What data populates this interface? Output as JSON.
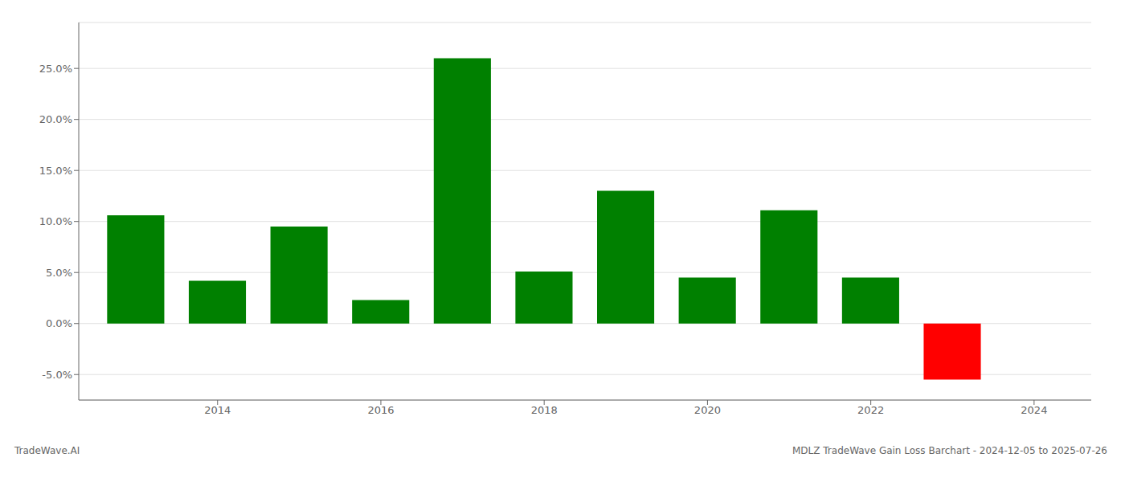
{
  "chart_data": {
    "type": "bar",
    "x": [
      2013,
      2014,
      2015,
      2016,
      2017,
      2018,
      2019,
      2020,
      2021,
      2022,
      2023
    ],
    "values": [
      0.106,
      0.042,
      0.095,
      0.023,
      0.26,
      0.051,
      0.13,
      0.045,
      0.111,
      0.045,
      -0.055
    ],
    "colors": [
      "#008000",
      "#008000",
      "#008000",
      "#008000",
      "#008000",
      "#008000",
      "#008000",
      "#008000",
      "#008000",
      "#008000",
      "#ff0000"
    ],
    "xlim": [
      2012.3,
      2024.7
    ],
    "ylim": [
      -0.075,
      0.295
    ],
    "xticks": [
      2014,
      2016,
      2018,
      2020,
      2022,
      2024
    ],
    "yticks": [
      {
        "value": -0.05,
        "label": "-5.0%"
      },
      {
        "value": 0.0,
        "label": "0.0%"
      },
      {
        "value": 0.05,
        "label": "5.0%"
      },
      {
        "value": 0.1,
        "label": "10.0%"
      },
      {
        "value": 0.15,
        "label": "15.0%"
      },
      {
        "value": 0.2,
        "label": "20.0%"
      },
      {
        "value": 0.25,
        "label": "25.0%"
      }
    ],
    "grid": true,
    "annotations": [
      "TradeWave.AI",
      "MDLZ TradeWave Gain Loss Barchart - 2024-12-05 to 2025-07-26"
    ]
  }
}
